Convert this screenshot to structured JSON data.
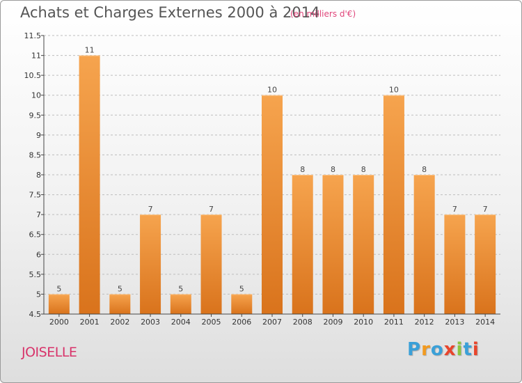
{
  "header": {
    "title": "Achats et Charges Externes 2000 à 2014",
    "subtitle": "(en milliers d'€)"
  },
  "footer": {
    "location": "JOISELLE",
    "logo": [
      "P",
      "r",
      "o",
      "x",
      "i",
      "t",
      "i"
    ],
    "logo_colors": [
      "#3aa0d8",
      "#f29a1f",
      "#3aa0d8",
      "#e8452c",
      "#8cc63f",
      "#3aa0d8",
      "#e8452c"
    ]
  },
  "colors": {
    "bar_light": "#f6a44e",
    "bar_dark": "#d9731c",
    "axis": "#444444",
    "grid": "#bdbdbd"
  },
  "chart_data": {
    "type": "bar",
    "title": "Achats et Charges Externes 2000 à 2014",
    "subtitle": "(en milliers d'€)",
    "categories": [
      "2000",
      "2001",
      "2002",
      "2003",
      "2004",
      "2005",
      "2006",
      "2007",
      "2008",
      "2009",
      "2010",
      "2011",
      "2012",
      "2013",
      "2014"
    ],
    "values": [
      5,
      11,
      5,
      7,
      5,
      7,
      5,
      10,
      8,
      8,
      8,
      10,
      8,
      7,
      7
    ],
    "data_labels": [
      "5",
      "11",
      "5",
      "7",
      "5",
      "7",
      "5",
      "10",
      "8",
      "8",
      "8",
      "10",
      "8",
      "7",
      "7"
    ],
    "ylim": [
      4.5,
      11.5
    ],
    "yticks": [
      4.5,
      5,
      5.5,
      6,
      6.5,
      7,
      7.5,
      8,
      8.5,
      9,
      9.5,
      10,
      10.5,
      11,
      11.5
    ],
    "ytick_labels": [
      "4.5",
      "5",
      "5.5",
      "6",
      "6.5",
      "7",
      "7.5",
      "8",
      "8.5",
      "9",
      "9.5",
      "10",
      "10.5",
      "11",
      "11.5"
    ],
    "grid": "horizontal dashed",
    "xlabel": "",
    "ylabel": ""
  }
}
